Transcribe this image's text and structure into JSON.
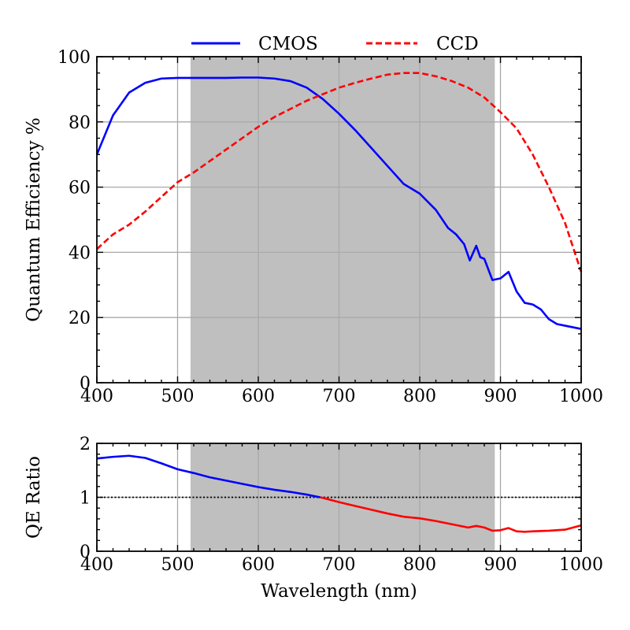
{
  "chart_data": [
    {
      "type": "line",
      "xlabel": "",
      "ylabel": "Quantum Efficiency %",
      "xlim": [
        400,
        1000
      ],
      "ylim": [
        0,
        100
      ],
      "xticks": [
        400,
        500,
        600,
        700,
        800,
        900,
        1000
      ],
      "yticks": [
        0,
        20,
        40,
        60,
        80,
        100
      ],
      "grid": true,
      "legend_position": "top",
      "shaded_band": [
        516,
        893
      ],
      "shaded_color": "#bfbfbf",
      "series": [
        {
          "name": "CMOS",
          "color": "#0000ff",
          "style": "solid",
          "x": [
            400,
            420,
            440,
            460,
            480,
            500,
            520,
            540,
            560,
            580,
            600,
            620,
            640,
            660,
            680,
            700,
            720,
            740,
            760,
            780,
            800,
            820,
            835,
            845,
            855,
            862,
            870,
            875,
            880,
            890,
            900,
            910,
            920,
            930,
            940,
            950,
            960,
            970,
            980,
            1000
          ],
          "y": [
            70,
            82,
            89,
            92,
            93.3,
            93.5,
            93.5,
            93.5,
            93.5,
            93.6,
            93.6,
            93.3,
            92.5,
            90.5,
            87,
            82.5,
            77.5,
            72,
            66.5,
            61,
            58,
            53,
            47.5,
            45.5,
            42.5,
            37.5,
            42,
            38.5,
            38,
            31.5,
            32,
            34,
            28,
            24.5,
            24,
            22.5,
            19.5,
            18,
            17.5,
            16.5
          ]
        },
        {
          "name": "CCD",
          "color": "#ff0000",
          "style": "dashed",
          "x": [
            400,
            420,
            440,
            460,
            480,
            500,
            520,
            540,
            560,
            580,
            600,
            620,
            640,
            660,
            680,
            700,
            720,
            740,
            760,
            780,
            800,
            820,
            840,
            860,
            880,
            900,
            920,
            940,
            960,
            980,
            1000
          ],
          "y": [
            41,
            45.5,
            48.5,
            52.5,
            57,
            61.5,
            64.5,
            68,
            71.5,
            75,
            78.5,
            81.5,
            84,
            86.5,
            88.5,
            90.5,
            92,
            93.3,
            94.5,
            95,
            95,
            94,
            92.5,
            90.5,
            87.5,
            83,
            78,
            70,
            60,
            49,
            34
          ]
        }
      ]
    },
    {
      "type": "line",
      "xlabel": "Wavelength (nm)",
      "ylabel": "QE Ratio",
      "xlim": [
        400,
        1000
      ],
      "ylim": [
        0,
        2
      ],
      "xticks": [
        400,
        500,
        600,
        700,
        800,
        900,
        1000
      ],
      "yticks": [
        0,
        1,
        2
      ],
      "grid": true,
      "reference_line": 1,
      "shaded_band": [
        516,
        893
      ],
      "shaded_color": "#bfbfbf",
      "series": [
        {
          "color_above_1": "#0000ff",
          "color_below_1": "#ff0000",
          "style": "solid",
          "x": [
            400,
            420,
            440,
            460,
            480,
            500,
            520,
            540,
            560,
            580,
            600,
            620,
            640,
            660,
            680,
            700,
            720,
            740,
            760,
            780,
            800,
            820,
            840,
            860,
            870,
            880,
            890,
            900,
            910,
            920,
            930,
            940,
            960,
            980,
            1000
          ],
          "y": [
            1.72,
            1.75,
            1.77,
            1.73,
            1.63,
            1.52,
            1.45,
            1.37,
            1.31,
            1.25,
            1.19,
            1.14,
            1.1,
            1.05,
            0.99,
            0.91,
            0.84,
            0.77,
            0.7,
            0.64,
            0.61,
            0.56,
            0.5,
            0.44,
            0.47,
            0.44,
            0.38,
            0.39,
            0.43,
            0.37,
            0.36,
            0.37,
            0.38,
            0.4,
            0.48
          ]
        }
      ]
    }
  ]
}
